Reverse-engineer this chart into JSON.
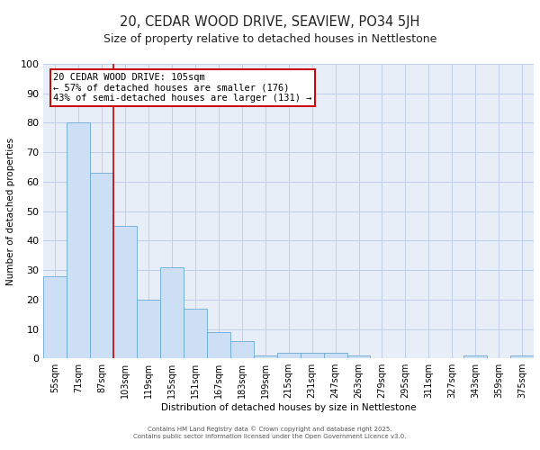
{
  "title": "20, CEDAR WOOD DRIVE, SEAVIEW, PO34 5JH",
  "subtitle": "Size of property relative to detached houses in Nettlestone",
  "xlabel": "Distribution of detached houses by size in Nettlestone",
  "ylabel": "Number of detached properties",
  "bar_color": "#ccdff5",
  "bar_edge_color": "#6aaad4",
  "bar_edge_width": 0.6,
  "categories": [
    "55sqm",
    "71sqm",
    "87sqm",
    "103sqm",
    "119sqm",
    "135sqm",
    "151sqm",
    "167sqm",
    "183sqm",
    "199sqm",
    "215sqm",
    "231sqm",
    "247sqm",
    "263sqm",
    "279sqm",
    "295sqm",
    "311sqm",
    "327sqm",
    "343sqm",
    "359sqm",
    "375sqm"
  ],
  "values": [
    28,
    80,
    63,
    45,
    20,
    31,
    17,
    9,
    6,
    1,
    2,
    2,
    2,
    1,
    0,
    0,
    0,
    0,
    1,
    0,
    1
  ],
  "ylim": [
    0,
    100
  ],
  "yticks": [
    0,
    10,
    20,
    30,
    40,
    50,
    60,
    70,
    80,
    90,
    100
  ],
  "vline_x": 2.5,
  "vline_color": "#cc0000",
  "annotation_text": "20 CEDAR WOOD DRIVE: 105sqm\n← 57% of detached houses are smaller (176)\n43% of semi-detached houses are larger (131) →",
  "annotation_box_color": "#ffffff",
  "annotation_border_color": "#cc0000",
  "annotation_fontsize": 7.5,
  "grid_color": "#c0cfea",
  "background_color": "#e8eef8",
  "title_fontsize": 10.5,
  "subtitle_fontsize": 9,
  "xlabel_fontsize": 7.5,
  "ylabel_fontsize": 7.5,
  "tick_fontsize": 7,
  "footer_line1": "Contains HM Land Registry data © Crown copyright and database right 2025.",
  "footer_line2": "Contains public sector information licensed under the Open Government Licence v3.0."
}
